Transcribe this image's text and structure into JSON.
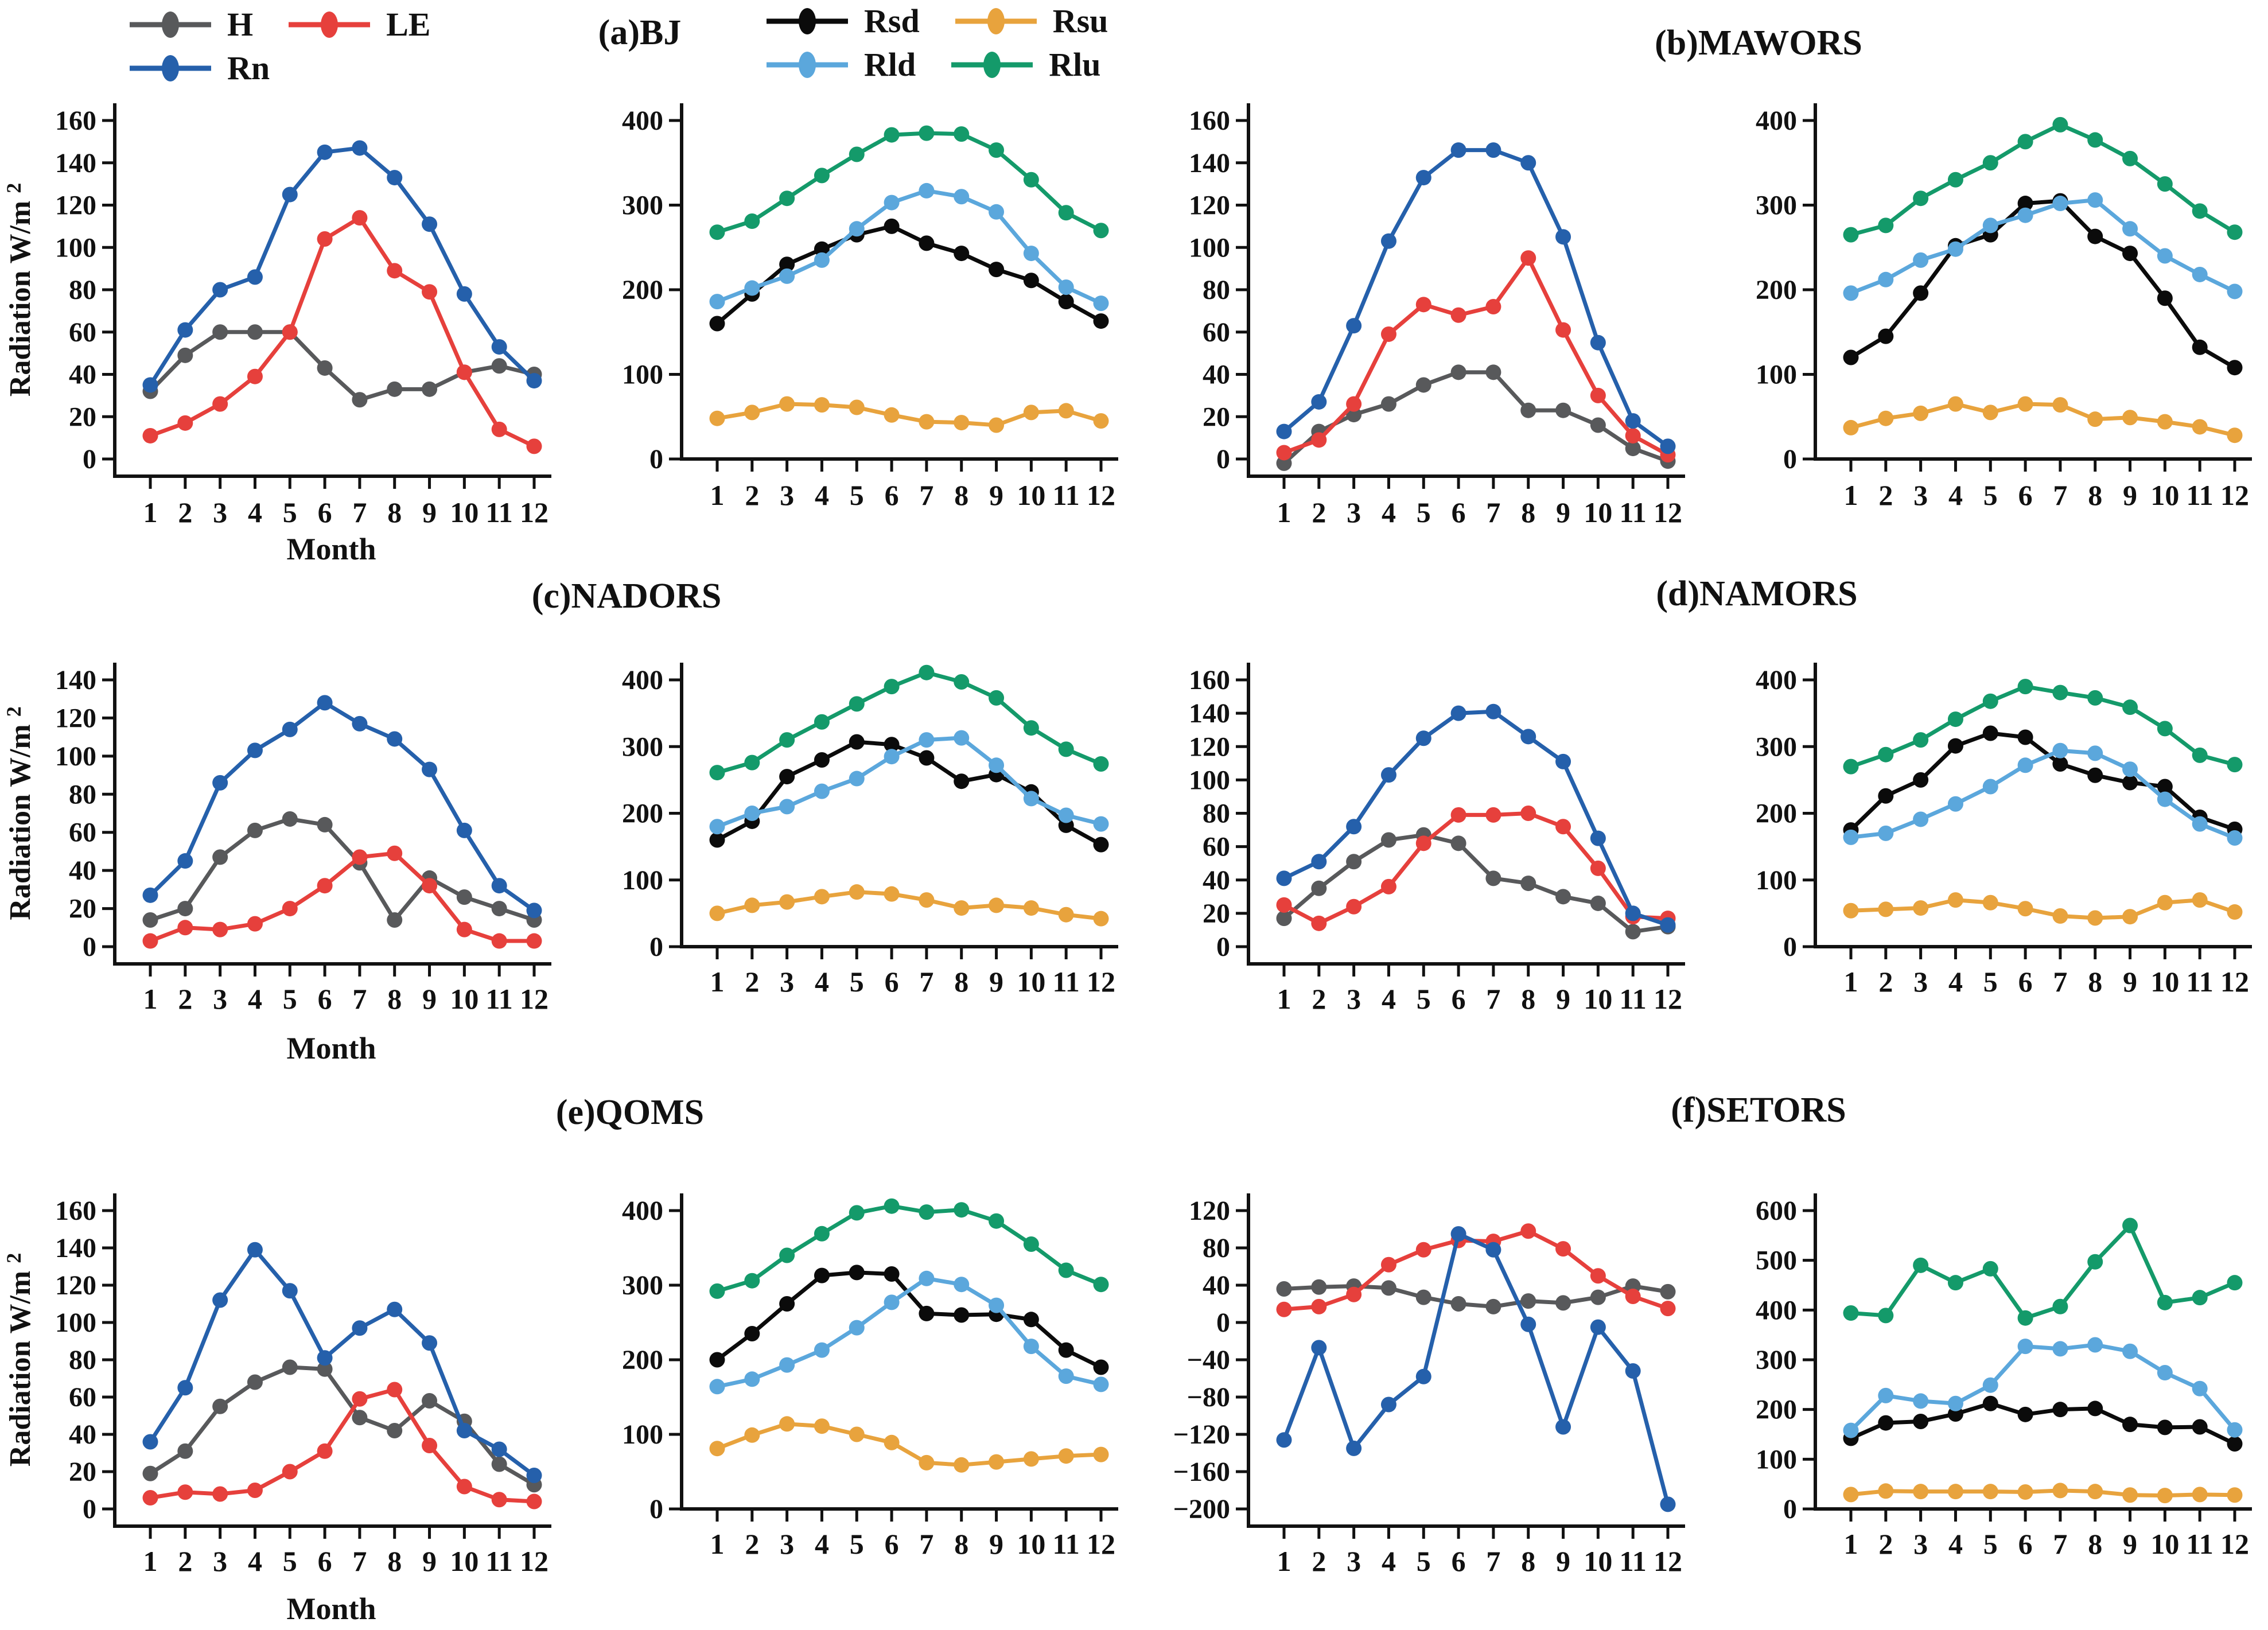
{
  "figure": {
    "titles": {
      "a": "(a)BJ",
      "b": "(b)MAWORS",
      "c": "(c)NADORS",
      "d": "(d)NAMORS",
      "e": "(e)QOMS",
      "f": "(f)SETORS"
    },
    "legend_energy": [
      "H",
      "LE",
      "Rn"
    ],
    "legend_radiation": [
      "Rsd",
      "Rsu",
      "Rld",
      "Rlu"
    ],
    "ylabel": "Radiation W/m",
    "ylabel_sup": "2",
    "xlabel": "Month",
    "months": [
      "1",
      "2",
      "3",
      "4",
      "5",
      "6",
      "7",
      "8",
      "9",
      "10",
      "11",
      "12"
    ]
  },
  "series_colors": {
    "H": "#58595b",
    "LE": "#e6403c",
    "Rn": "#2560ab",
    "Rsd": "#0b0b0b",
    "Rsu": "#e8a33d",
    "Rld": "#5ba7dc",
    "Rlu": "#149a6a",
    "axis": "#111111"
  },
  "chart_data": [
    {
      "id": "bj-energy",
      "station": "BJ",
      "panel": "a",
      "type": "line",
      "ylim": [
        0,
        160
      ],
      "ytick_step": 20,
      "offset_xaxis": true,
      "show_ylabel": true,
      "show_xlabel": true,
      "grid": false,
      "series": [
        {
          "name": "H",
          "values": [
            32,
            49,
            60,
            60,
            60,
            43,
            28,
            33,
            33,
            41,
            44,
            40
          ]
        },
        {
          "name": "LE",
          "values": [
            11,
            17,
            26,
            39,
            60,
            104,
            114,
            89,
            79,
            41,
            14,
            6
          ]
        },
        {
          "name": "Rn",
          "values": [
            35,
            61,
            80,
            86,
            125,
            145,
            147,
            133,
            111,
            78,
            53,
            37
          ]
        }
      ]
    },
    {
      "id": "bj-radiation",
      "station": "BJ",
      "panel": "a",
      "type": "line",
      "ylim": [
        0,
        400
      ],
      "ytick_step": 100,
      "offset_xaxis": false,
      "show_ylabel": false,
      "show_xlabel": false,
      "grid": false,
      "series": [
        {
          "name": "Rsd",
          "values": [
            160,
            195,
            230,
            248,
            265,
            275,
            255,
            243,
            224,
            211,
            186,
            163
          ]
        },
        {
          "name": "Rsu",
          "values": [
            48,
            55,
            65,
            64,
            61,
            52,
            44,
            43,
            40,
            55,
            57,
            45
          ]
        },
        {
          "name": "Rld",
          "values": [
            186,
            202,
            216,
            235,
            272,
            303,
            317,
            310,
            292,
            243,
            203,
            184
          ]
        },
        {
          "name": "Rlu",
          "values": [
            268,
            281,
            308,
            335,
            360,
            383,
            385,
            384,
            365,
            330,
            291,
            270
          ]
        }
      ]
    },
    {
      "id": "mawors-energy",
      "station": "MAWORS",
      "panel": "b",
      "type": "line",
      "ylim": [
        0,
        160
      ],
      "ytick_step": 20,
      "offset_xaxis": true,
      "show_ylabel": false,
      "show_xlabel": false,
      "grid": false,
      "series": [
        {
          "name": "H",
          "values": [
            -2,
            13,
            21,
            26,
            35,
            41,
            41,
            23,
            23,
            16,
            5,
            -1
          ]
        },
        {
          "name": "LE",
          "values": [
            3,
            9,
            26,
            59,
            73,
            68,
            72,
            95,
            61,
            30,
            11,
            2
          ]
        },
        {
          "name": "Rn",
          "values": [
            13,
            27,
            63,
            103,
            133,
            146,
            146,
            140,
            105,
            55,
            18,
            6
          ]
        }
      ]
    },
    {
      "id": "mawors-radiation",
      "station": "MAWORS",
      "panel": "b",
      "type": "line",
      "ylim": [
        0,
        400
      ],
      "ytick_step": 100,
      "offset_xaxis": false,
      "show_ylabel": false,
      "show_xlabel": false,
      "grid": false,
      "series": [
        {
          "name": "Rsd",
          "values": [
            120,
            145,
            196,
            252,
            265,
            302,
            305,
            263,
            243,
            190,
            132,
            108
          ]
        },
        {
          "name": "Rsu",
          "values": [
            37,
            48,
            54,
            65,
            55,
            65,
            64,
            47,
            49,
            44,
            38,
            28
          ]
        },
        {
          "name": "Rld",
          "values": [
            196,
            212,
            235,
            248,
            276,
            288,
            302,
            306,
            272,
            240,
            218,
            198
          ]
        },
        {
          "name": "Rlu",
          "values": [
            265,
            276,
            308,
            330,
            350,
            375,
            395,
            377,
            355,
            325,
            293,
            268
          ]
        }
      ]
    },
    {
      "id": "nadors-energy",
      "station": "NADORS",
      "panel": "c",
      "type": "line",
      "ylim": [
        0,
        140
      ],
      "ytick_step": 20,
      "offset_xaxis": true,
      "show_ylabel": true,
      "show_xlabel": true,
      "grid": false,
      "series": [
        {
          "name": "H",
          "values": [
            14,
            20,
            47,
            61,
            67,
            64,
            44,
            14,
            36,
            26,
            20,
            14
          ]
        },
        {
          "name": "LE",
          "values": [
            3,
            10,
            9,
            12,
            20,
            32,
            47,
            49,
            32,
            9,
            3,
            3
          ]
        },
        {
          "name": "Rn",
          "values": [
            27,
            45,
            86,
            103,
            114,
            128,
            117,
            109,
            93,
            61,
            32,
            19
          ]
        }
      ]
    },
    {
      "id": "nadors-radiation",
      "station": "NADORS",
      "panel": "c",
      "type": "line",
      "ylim": [
        0,
        400
      ],
      "ytick_step": 100,
      "offset_xaxis": false,
      "show_ylabel": false,
      "show_xlabel": false,
      "grid": false,
      "series": [
        {
          "name": "Rsd",
          "values": [
            160,
            188,
            255,
            280,
            307,
            303,
            283,
            248,
            258,
            232,
            182,
            153
          ]
        },
        {
          "name": "Rsu",
          "values": [
            50,
            62,
            67,
            75,
            82,
            79,
            70,
            58,
            62,
            58,
            48,
            42
          ]
        },
        {
          "name": "Rld",
          "values": [
            180,
            200,
            210,
            233,
            252,
            285,
            310,
            313,
            272,
            222,
            197,
            184
          ]
        },
        {
          "name": "Rlu",
          "values": [
            261,
            276,
            310,
            337,
            364,
            390,
            411,
            397,
            373,
            328,
            296,
            274
          ]
        }
      ]
    },
    {
      "id": "namors-energy",
      "station": "NAMORS",
      "panel": "d",
      "type": "line",
      "ylim": [
        0,
        160
      ],
      "ytick_step": 20,
      "offset_xaxis": true,
      "show_ylabel": false,
      "show_xlabel": false,
      "grid": false,
      "series": [
        {
          "name": "H",
          "values": [
            17,
            35,
            51,
            64,
            67,
            62,
            41,
            38,
            30,
            26,
            9,
            12
          ]
        },
        {
          "name": "LE",
          "values": [
            25,
            14,
            24,
            36,
            62,
            79,
            79,
            80,
            72,
            47,
            18,
            17
          ]
        },
        {
          "name": "Rn",
          "values": [
            41,
            51,
            72,
            103,
            125,
            140,
            141,
            126,
            111,
            65,
            20,
            13
          ]
        }
      ]
    },
    {
      "id": "namors-radiation",
      "station": "NAMORS",
      "panel": "d",
      "type": "line",
      "ylim": [
        0,
        400
      ],
      "ytick_step": 100,
      "offset_xaxis": false,
      "show_ylabel": false,
      "show_xlabel": false,
      "grid": false,
      "series": [
        {
          "name": "Rsd",
          "values": [
            175,
            226,
            250,
            301,
            320,
            314,
            274,
            257,
            246,
            240,
            194,
            176
          ]
        },
        {
          "name": "Rsu",
          "values": [
            54,
            56,
            58,
            70,
            66,
            57,
            46,
            43,
            45,
            66,
            70,
            52
          ]
        },
        {
          "name": "Rld",
          "values": [
            164,
            170,
            191,
            214,
            240,
            272,
            294,
            290,
            266,
            221,
            184,
            163
          ]
        },
        {
          "name": "Rlu",
          "values": [
            270,
            288,
            310,
            341,
            368,
            390,
            381,
            373,
            359,
            327,
            287,
            273
          ]
        }
      ]
    },
    {
      "id": "qoms-energy",
      "station": "QOMS",
      "panel": "e",
      "type": "line",
      "ylim": [
        0,
        160
      ],
      "ytick_step": 20,
      "offset_xaxis": true,
      "show_ylabel": true,
      "show_xlabel": true,
      "grid": false,
      "series": [
        {
          "name": "H",
          "values": [
            19,
            31,
            55,
            68,
            76,
            75,
            49,
            42,
            58,
            47,
            24,
            13
          ]
        },
        {
          "name": "LE",
          "values": [
            6,
            9,
            8,
            10,
            20,
            31,
            59,
            64,
            34,
            12,
            5,
            4
          ]
        },
        {
          "name": "Rn",
          "values": [
            36,
            65,
            112,
            139,
            117,
            81,
            97,
            107,
            89,
            42,
            32,
            18
          ]
        }
      ]
    },
    {
      "id": "qoms-radiation",
      "station": "QOMS",
      "panel": "e",
      "type": "line",
      "ylim": [
        0,
        400
      ],
      "ytick_step": 100,
      "offset_xaxis": false,
      "show_ylabel": false,
      "show_xlabel": false,
      "grid": false,
      "series": [
        {
          "name": "Rsd",
          "values": [
            200,
            235,
            275,
            313,
            317,
            315,
            262,
            260,
            261,
            254,
            213,
            190
          ]
        },
        {
          "name": "Rsu",
          "values": [
            81,
            99,
            114,
            111,
            100,
            89,
            62,
            59,
            63,
            67,
            71,
            73
          ]
        },
        {
          "name": "Rld",
          "values": [
            164,
            174,
            193,
            213,
            243,
            277,
            309,
            301,
            273,
            218,
            178,
            167
          ]
        },
        {
          "name": "Rlu",
          "values": [
            292,
            306,
            340,
            369,
            397,
            406,
            398,
            401,
            386,
            355,
            320,
            301
          ]
        }
      ]
    },
    {
      "id": "setors-energy",
      "station": "SETORS",
      "panel": "f",
      "type": "line",
      "ylim": [
        -200,
        120
      ],
      "ytick_step": 40,
      "offset_xaxis": true,
      "show_ylabel": false,
      "show_xlabel": false,
      "grid": false,
      "series": [
        {
          "name": "H",
          "values": [
            36,
            38,
            39,
            37,
            27,
            20,
            17,
            23,
            21,
            27,
            39,
            33
          ]
        },
        {
          "name": "LE",
          "values": [
            14,
            17,
            30,
            62,
            78,
            88,
            87,
            98,
            79,
            50,
            28,
            15
          ]
        },
        {
          "name": "Rn",
          "values": [
            -126,
            -27,
            -135,
            -88,
            -58,
            95,
            78,
            -2,
            -112,
            -5,
            -52,
            -195
          ]
        }
      ]
    },
    {
      "id": "setors-radiation",
      "station": "SETORS",
      "panel": "f",
      "type": "line",
      "ylim": [
        0,
        600
      ],
      "ytick_step": 100,
      "offset_xaxis": false,
      "show_ylabel": false,
      "show_xlabel": false,
      "grid": false,
      "series": [
        {
          "name": "Rsd",
          "values": [
            142,
            173,
            176,
            191,
            212,
            190,
            200,
            202,
            170,
            164,
            165,
            131
          ]
        },
        {
          "name": "Rsu",
          "values": [
            29,
            36,
            35,
            35,
            35,
            34,
            37,
            35,
            28,
            27,
            29,
            28
          ]
        },
        {
          "name": "Rld",
          "values": [
            158,
            228,
            217,
            212,
            249,
            327,
            322,
            330,
            317,
            274,
            242,
            159
          ]
        },
        {
          "name": "Rlu",
          "values": [
            394,
            389,
            490,
            455,
            483,
            384,
            407,
            497,
            570,
            415,
            425,
            455
          ]
        }
      ]
    }
  ]
}
